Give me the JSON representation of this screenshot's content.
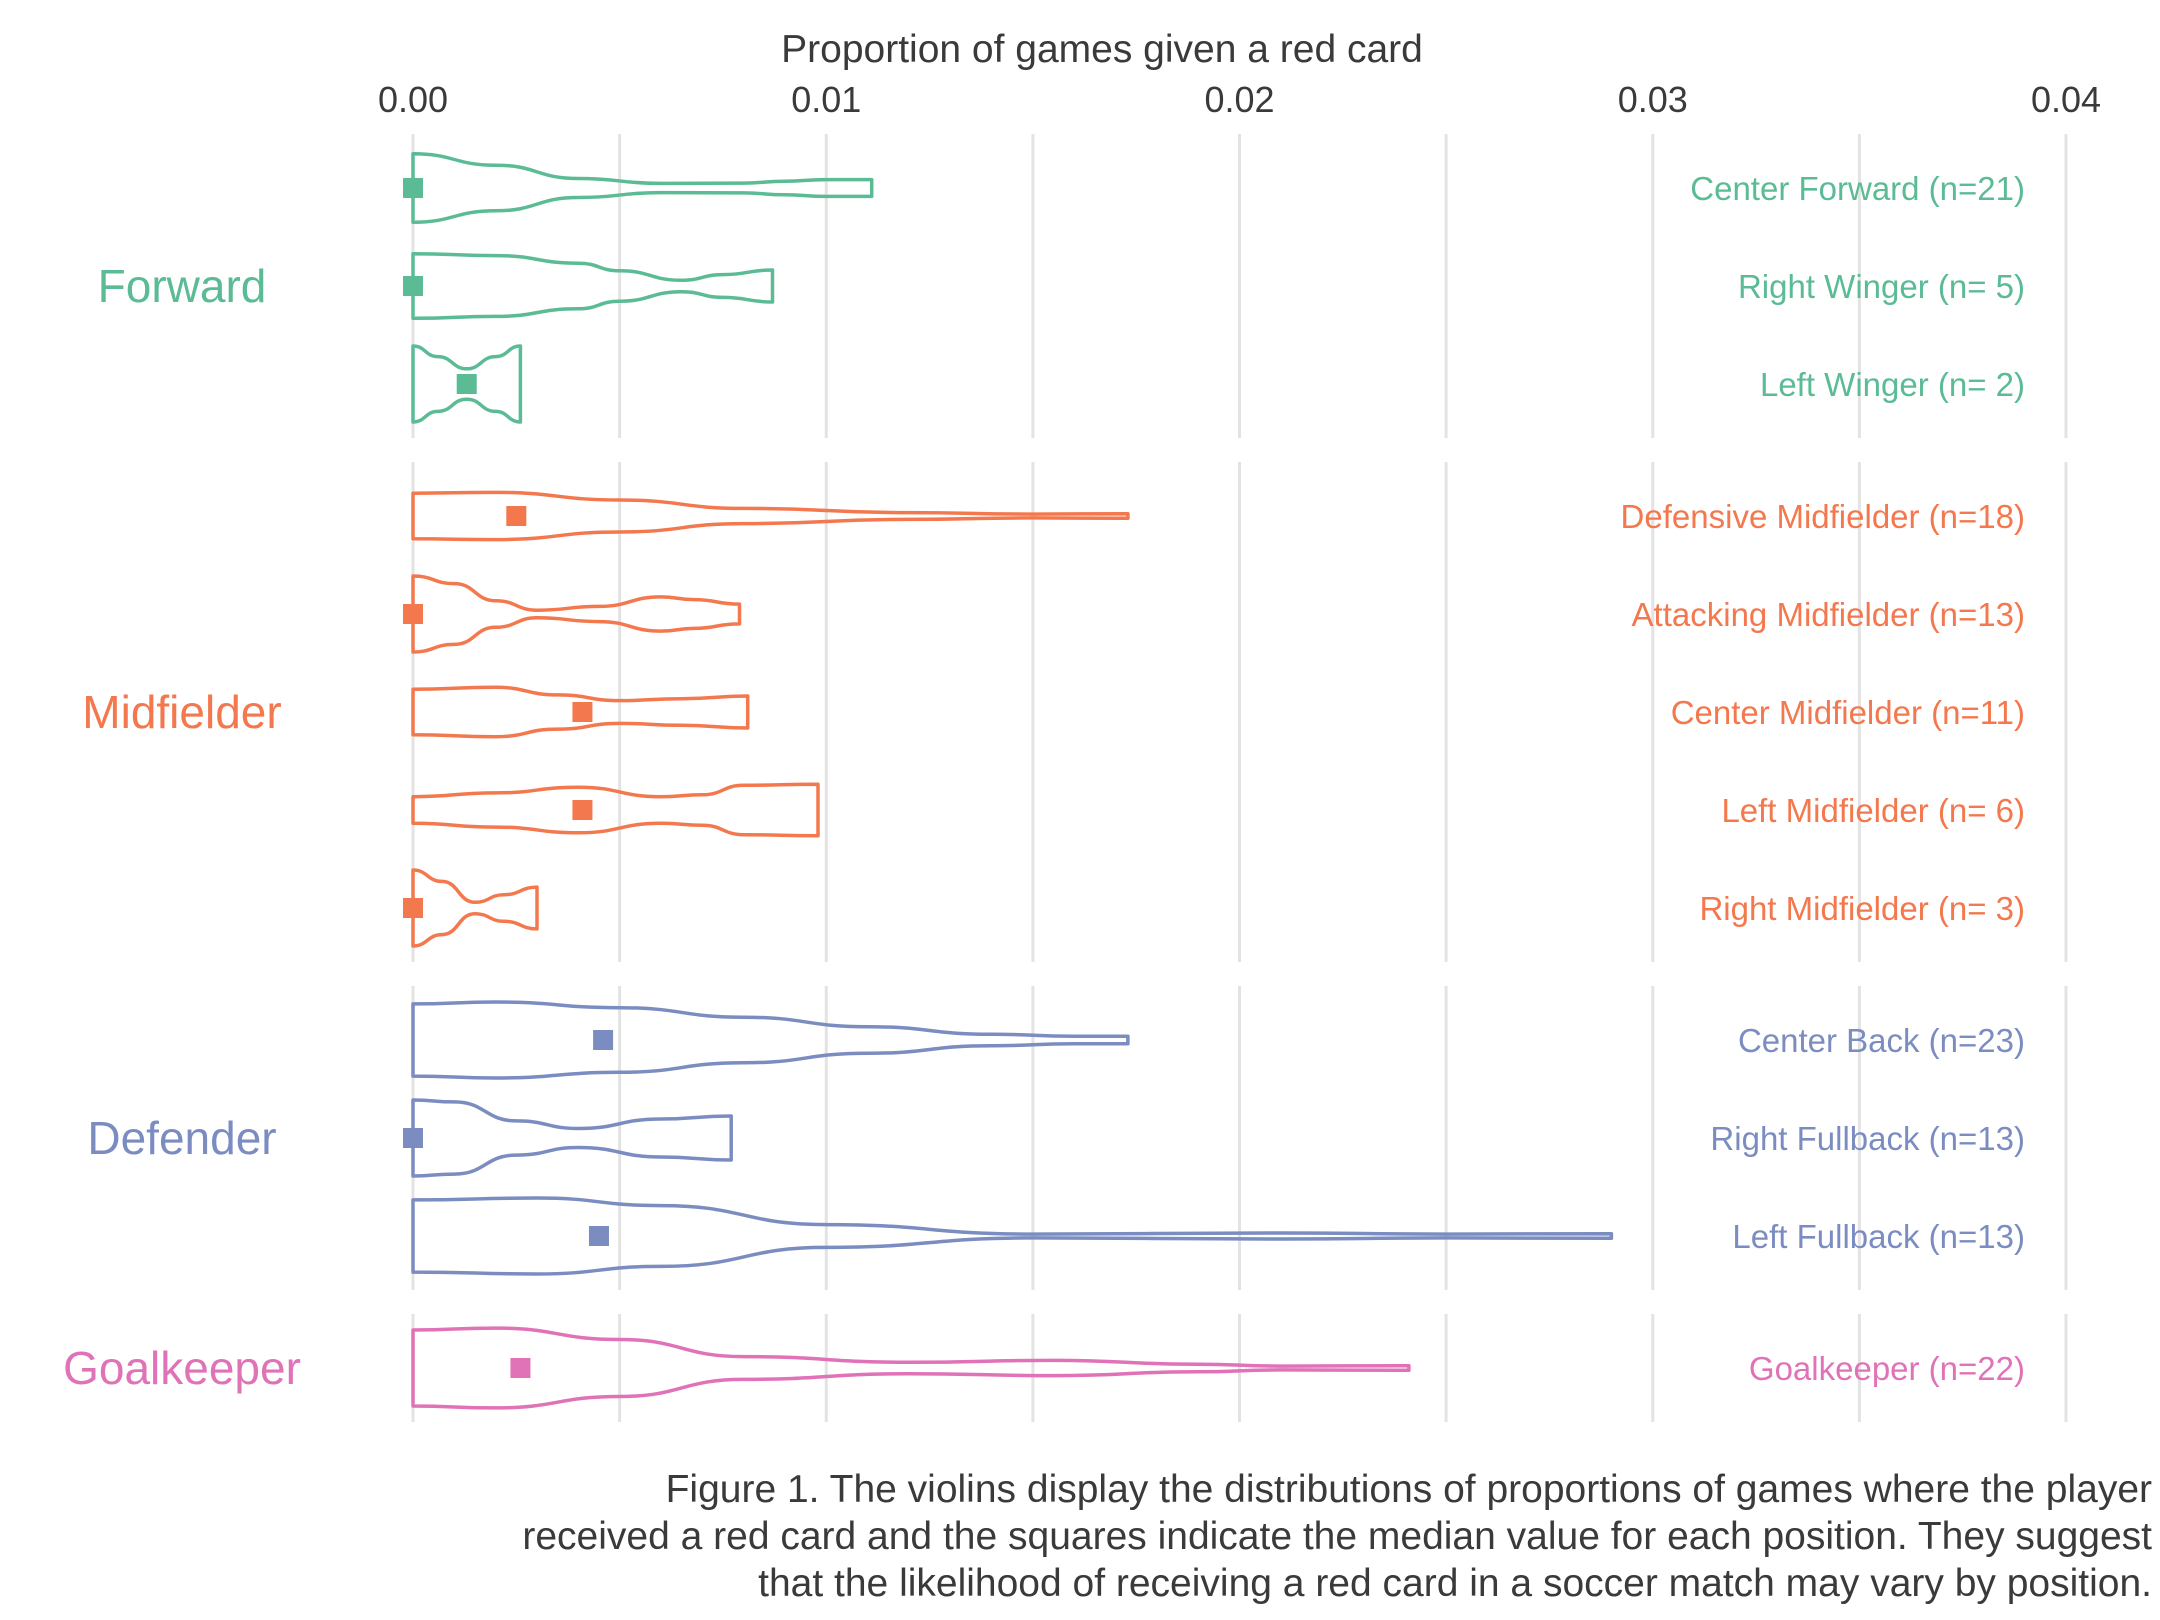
{
  "chart_data": {
    "type": "violin",
    "orientation": "horizontal",
    "xlabel": "Proportion of games given a red card",
    "xlim": [
      0,
      0.04
    ],
    "xticks": [
      0,
      0.01,
      0.02,
      0.03,
      0.04
    ],
    "xtick_labels": [
      "0.00",
      "0.01",
      "0.02",
      "0.03",
      "0.04"
    ],
    "axis_position": "top",
    "grid": true,
    "median_marker": "square",
    "groups": [
      {
        "name": "Forward",
        "color": "#5bbb95",
        "series": [
          {
            "label": "Center Forward (n=21)",
            "median": 0.0,
            "max": 0.0111,
            "profile": [
              [
                0.0,
                0.9
              ],
              [
                0.002,
                0.6
              ],
              [
                0.004,
                0.25
              ],
              [
                0.006,
                0.12
              ],
              [
                0.008,
                0.13
              ],
              [
                0.009,
                0.18
              ],
              [
                0.01,
                0.22
              ],
              [
                0.0111,
                0.22
              ]
            ]
          },
          {
            "label": "Right Winger (n= 5)",
            "median": 0.0,
            "max": 0.0087,
            "profile": [
              [
                0.0,
                0.85
              ],
              [
                0.002,
                0.8
              ],
              [
                0.004,
                0.6
              ],
              [
                0.005,
                0.4
              ],
              [
                0.0065,
                0.15
              ],
              [
                0.0075,
                0.3
              ],
              [
                0.0087,
                0.42
              ]
            ]
          },
          {
            "label": "Left Winger (n= 2)",
            "median": 0.0013,
            "max": 0.0026,
            "profile": [
              [
                0.0,
                1.0
              ],
              [
                0.0006,
                0.72
              ],
              [
                0.0013,
                0.4
              ],
              [
                0.002,
                0.72
              ],
              [
                0.0026,
                1.0
              ]
            ]
          }
        ]
      },
      {
        "name": "Midfielder",
        "color": "#f4784d",
        "series": [
          {
            "label": "Defensive Midfielder (n=18)",
            "median": 0.0025,
            "max": 0.0173,
            "profile": [
              [
                0.0,
                0.6
              ],
              [
                0.002,
                0.62
              ],
              [
                0.005,
                0.42
              ],
              [
                0.008,
                0.2
              ],
              [
                0.012,
                0.09
              ],
              [
                0.015,
                0.05
              ],
              [
                0.0173,
                0.06
              ]
            ]
          },
          {
            "label": "Attacking Midfielder (n=13)",
            "median": 0.0,
            "max": 0.0079,
            "profile": [
              [
                0.0,
                1.0
              ],
              [
                0.001,
                0.8
              ],
              [
                0.002,
                0.35
              ],
              [
                0.003,
                0.1
              ],
              [
                0.0045,
                0.2
              ],
              [
                0.006,
                0.45
              ],
              [
                0.0068,
                0.38
              ],
              [
                0.0079,
                0.26
              ]
            ]
          },
          {
            "label": "Center Midfielder (n=11)",
            "median": 0.0041,
            "max": 0.0081,
            "profile": [
              [
                0.0,
                0.6
              ],
              [
                0.002,
                0.65
              ],
              [
                0.0035,
                0.45
              ],
              [
                0.005,
                0.3
              ],
              [
                0.0065,
                0.35
              ],
              [
                0.0081,
                0.42
              ]
            ]
          },
          {
            "label": "Left Midfielder (n= 6)",
            "median": 0.0041,
            "max": 0.0098,
            "profile": [
              [
                0.0,
                0.35
              ],
              [
                0.002,
                0.45
              ],
              [
                0.004,
                0.6
              ],
              [
                0.006,
                0.35
              ],
              [
                0.007,
                0.4
              ],
              [
                0.008,
                0.65
              ],
              [
                0.0098,
                0.68
              ]
            ]
          },
          {
            "label": "Right Midfielder (n= 3)",
            "median": 0.0,
            "max": 0.003,
            "profile": [
              [
                0.0,
                1.0
              ],
              [
                0.0007,
                0.7
              ],
              [
                0.0015,
                0.15
              ],
              [
                0.0022,
                0.35
              ],
              [
                0.003,
                0.55
              ]
            ]
          }
        ]
      },
      {
        "name": "Defender",
        "color": "#7b8cc0",
        "series": [
          {
            "label": "Center Back (n=23)",
            "median": 0.0046,
            "max": 0.0173,
            "profile": [
              [
                0.0,
                0.95
              ],
              [
                0.002,
                1.0
              ],
              [
                0.005,
                0.85
              ],
              [
                0.008,
                0.6
              ],
              [
                0.011,
                0.35
              ],
              [
                0.014,
                0.15
              ],
              [
                0.016,
                0.1
              ],
              [
                0.0173,
                0.1
              ]
            ]
          },
          {
            "label": "Right Fullback (n=13)",
            "median": 0.0,
            "max": 0.0077,
            "profile": [
              [
                0.0,
                1.0
              ],
              [
                0.001,
                0.95
              ],
              [
                0.0025,
                0.45
              ],
              [
                0.004,
                0.25
              ],
              [
                0.006,
                0.5
              ],
              [
                0.0077,
                0.58
              ]
            ]
          },
          {
            "label": "Left Fullback (n=13)",
            "median": 0.0045,
            "max": 0.029,
            "profile": [
              [
                0.0,
                0.95
              ],
              [
                0.003,
                1.0
              ],
              [
                0.006,
                0.8
              ],
              [
                0.01,
                0.3
              ],
              [
                0.015,
                0.05
              ],
              [
                0.021,
                0.08
              ],
              [
                0.025,
                0.05
              ],
              [
                0.029,
                0.06
              ]
            ]
          }
        ]
      },
      {
        "name": "Goalkeeper",
        "color": "#e072b7",
        "series": [
          {
            "label": "Goalkeeper (n=22)",
            "median": 0.0026,
            "max": 0.0241,
            "profile": [
              [
                0.0,
                1.0
              ],
              [
                0.002,
                1.05
              ],
              [
                0.005,
                0.75
              ],
              [
                0.008,
                0.3
              ],
              [
                0.012,
                0.15
              ],
              [
                0.0155,
                0.2
              ],
              [
                0.019,
                0.1
              ],
              [
                0.021,
                0.05
              ],
              [
                0.0241,
                0.06
              ]
            ]
          }
        ]
      }
    ],
    "caption": [
      "Figure 1. The violins display the distributions of proportions of games where the player",
      "received a red card and the squares indicate the median value for each position. They suggest",
      "that the likelihood of receiving a red card in a soccer match may vary by position."
    ]
  }
}
